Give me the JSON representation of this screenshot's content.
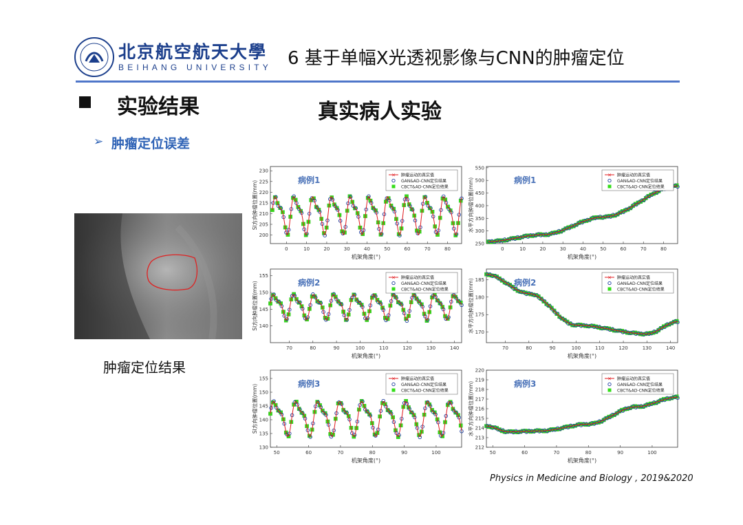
{
  "header": {
    "logo_cn": "北京航空航天大學",
    "logo_en": "BEIHANG UNIVERSITY",
    "slide_title": "6 基于单幅X光透视影像与CNN的肿瘤定位"
  },
  "section": {
    "title": "实验结果",
    "center_title": "真实病人实验",
    "subtitle_arrow": "➢",
    "subtitle": "肿瘤定位误差"
  },
  "image_caption": "肿瘤定位结果",
  "citation": "Physics in Medicine and Biology , 2019&2020",
  "colors": {
    "accent_blue": "#2f63b6",
    "rule_blue": "#4f76c9",
    "case_label": "#4a72b8",
    "series_red": "#e0181c",
    "series_green": "#33dd1a",
    "series_navy": "#1f3fa0"
  },
  "chart_data": [
    {
      "type": "line",
      "panel": "si-case1",
      "case_label": "病例1",
      "ylabel": "SI方向肿瘤位置(mm)",
      "xlabel": "机架角度(°)",
      "xlim": [
        -8,
        87
      ],
      "xticks": [
        0,
        10,
        20,
        30,
        40,
        50,
        60,
        70,
        80
      ],
      "ylim": [
        196,
        232
      ],
      "yticks": [
        200,
        205,
        210,
        215,
        220,
        225,
        230
      ],
      "legend": [
        "肿瘤运动的真实值",
        "GAN&AD-CNN定位结果",
        "CBCT&AD-CNN定位结果"
      ],
      "pattern": {
        "kind": "oscillating",
        "start": -7,
        "end": 87,
        "period": 9.3,
        "mid": 210,
        "amplitude": 10.5
      }
    },
    {
      "type": "line",
      "panel": "lr-case1",
      "case_label": "病例1",
      "ylabel": "水平方向肿瘤位置(mm)",
      "xlabel": "机架角度(°)",
      "xlim": [
        -8,
        87
      ],
      "xticks": [
        0,
        10,
        20,
        30,
        40,
        50,
        60,
        70,
        80
      ],
      "ylim": [
        250,
        555
      ],
      "yticks": [
        250,
        300,
        350,
        400,
        450,
        500,
        550
      ],
      "legend": [
        "肿瘤运动的真实值",
        "GAN&AD-CNN定位结果",
        "CBCT&AD-CNN定位结果"
      ],
      "pattern": {
        "kind": "curve",
        "x": [
          -7,
          20,
          50,
          87
        ],
        "y": [
          258,
          285,
          355,
          478
        ]
      }
    },
    {
      "type": "line",
      "panel": "si-case2",
      "case_label": "病例2",
      "ylabel": "SI方向肿瘤位置(mm)",
      "xlabel": "机架角度(°)",
      "xlim": [
        62,
        143
      ],
      "xticks": [
        70,
        80,
        90,
        100,
        110,
        120,
        130,
        140
      ],
      "ylim": [
        135,
        157
      ],
      "yticks": [
        140,
        145,
        150,
        155
      ],
      "legend": [
        "肿瘤运动的真实值",
        "GAN&AD-CNN定位结果",
        "CBCT&AD-CNN定位结果"
      ],
      "pattern": {
        "kind": "oscillating",
        "start": 62,
        "end": 143,
        "period": 8.5,
        "mid": 146,
        "amplitude": 4.5
      }
    },
    {
      "type": "line",
      "panel": "lr-case2",
      "case_label": "病例2",
      "ylabel": "水平方向肿瘤位置(mm)",
      "xlabel": "机架角度(°)",
      "xlim": [
        62,
        143
      ],
      "xticks": [
        70,
        80,
        90,
        100,
        110,
        120,
        130,
        140
      ],
      "ylim": [
        167,
        188
      ],
      "yticks": [
        170,
        175,
        180,
        185
      ],
      "legend": [
        "肿瘤运动的真实值",
        "GAN&AD-CNN定位结果",
        "CBCT&AD-CNN定位结果"
      ],
      "pattern": {
        "kind": "curve",
        "x": [
          62,
          80,
          100,
          130,
          143
        ],
        "y": [
          186.5,
          181,
          172,
          169.5,
          173
        ]
      }
    },
    {
      "type": "line",
      "panel": "si-case3",
      "case_label": "病例3",
      "ylabel": "SI方向肿瘤位置(mm)",
      "xlabel": "机架角度(°)",
      "xlim": [
        48,
        108
      ],
      "xticks": [
        50,
        60,
        70,
        80,
        90,
        100
      ],
      "ylim": [
        130,
        158
      ],
      "yticks": [
        130,
        135,
        140,
        145,
        150,
        155
      ],
      "legend": [
        "肿瘤运动的真实值",
        "GAN&AD-CNN定位结果",
        "CBCT&AD-CNN定位结果"
      ],
      "pattern": {
        "kind": "oscillating",
        "start": 48,
        "end": 108,
        "period": 6.9,
        "mid": 141,
        "amplitude": 7.5
      }
    },
    {
      "type": "line",
      "panel": "lr-case3",
      "case_label": "病例3",
      "ylabel": "水平方向肿瘤位置(mm)",
      "xlabel": "机架角度(°)",
      "xlim": [
        48,
        108
      ],
      "xticks": [
        50,
        60,
        70,
        80,
        90,
        100
      ],
      "ylim": [
        212,
        220
      ],
      "yticks": [
        212,
        213,
        214,
        215,
        216,
        217,
        218,
        219,
        220
      ],
      "legend": [
        "肿瘤运动的真实值",
        "GAN&AD-CNN定位结果",
        "CBCT&AD-CNN定位结果"
      ],
      "pattern": {
        "kind": "curve",
        "x": [
          48,
          55,
          65,
          80,
          95,
          108
        ],
        "y": [
          214.2,
          213.6,
          213.7,
          214.4,
          216.2,
          217.2
        ]
      }
    }
  ]
}
